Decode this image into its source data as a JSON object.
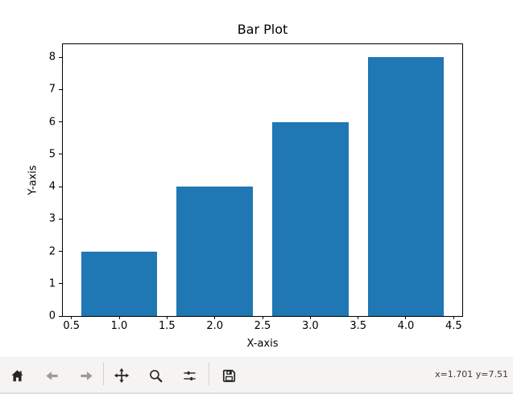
{
  "window": {
    "canvas_background": "#ffffff",
    "text_color": "#000000"
  },
  "chart_data": {
    "type": "bar",
    "title": "Bar Plot",
    "xlabel": "X-axis",
    "ylabel": "Y-axis",
    "x": [
      1,
      2,
      3,
      4
    ],
    "values": [
      2,
      4,
      6,
      8
    ],
    "bar_width": 0.8,
    "bar_color": "#1f77b4",
    "xlim": [
      0.41,
      4.59
    ],
    "ylim": [
      0,
      8.4
    ],
    "xtick_values": [
      0.5,
      1.0,
      1.5,
      2.0,
      2.5,
      3.0,
      3.5,
      4.0,
      4.5
    ],
    "xtick_labels": [
      "0.5",
      "1.0",
      "1.5",
      "2.0",
      "2.5",
      "3.0",
      "3.5",
      "4.0",
      "4.5"
    ],
    "ytick_values": [
      0,
      1,
      2,
      3,
      4,
      5,
      6,
      7,
      8
    ],
    "ytick_labels": [
      "0",
      "1",
      "2",
      "3",
      "4",
      "5",
      "6",
      "7",
      "8"
    ],
    "grid": false,
    "legend": null
  },
  "toolbar": {
    "background": "#f5f4f2",
    "icon_color_enabled": "#262626",
    "icon_color_disabled": "#9b9b9b",
    "icons": [
      "home-icon",
      "back-icon",
      "forward-icon",
      "pan-icon",
      "zoom-icon",
      "subplots-icon",
      "save-icon"
    ],
    "status_text": "x=1.701 y=7.51"
  }
}
